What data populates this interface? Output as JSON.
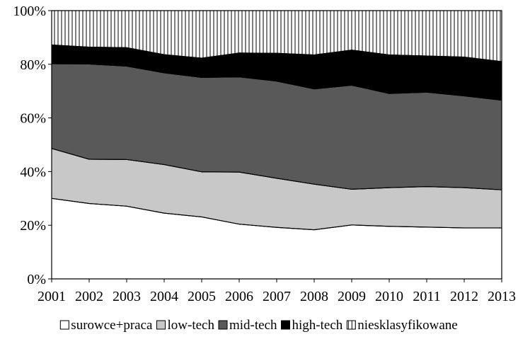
{
  "chart_data": {
    "type": "area",
    "stacked": true,
    "percent": true,
    "x": [
      "2001",
      "2002",
      "2003",
      "2004",
      "2005",
      "2006",
      "2007",
      "2008",
      "2009",
      "2010",
      "2011",
      "2012",
      "2013"
    ],
    "ylim": [
      0,
      100
    ],
    "y_ticks": [
      "0%",
      "20%",
      "40%",
      "60%",
      "80%",
      "100%"
    ],
    "y_tick_values": [
      0,
      20,
      40,
      60,
      80,
      100
    ],
    "grid": false,
    "legend_position": "bottom",
    "series": [
      {
        "name": "surowce+praca",
        "fill": "#ffffff",
        "pattern": "none",
        "values": [
          30.0,
          28.1,
          27.1,
          24.5,
          23.1,
          20.4,
          19.2,
          18.3,
          20.1,
          19.6,
          19.3,
          19.0,
          19.0
        ]
      },
      {
        "name": "low-tech",
        "fill": "#c8c8c8",
        "pattern": "none",
        "values": [
          18.6,
          16.5,
          17.4,
          18.1,
          16.8,
          19.4,
          18.3,
          17.0,
          13.3,
          14.4,
          15.1,
          15.0,
          14.2
        ]
      },
      {
        "name": "mid-tech",
        "fill": "#595959",
        "pattern": "none",
        "values": [
          31.6,
          35.5,
          34.8,
          34.2,
          35.2,
          35.5,
          36.2,
          35.5,
          38.8,
          35.1,
          35.2,
          34.2,
          33.4
        ]
      },
      {
        "name": "high-tech",
        "fill": "#000000",
        "pattern": "none",
        "values": [
          7.0,
          6.3,
          6.9,
          6.8,
          7.2,
          8.9,
          10.4,
          12.7,
          13.1,
          14.4,
          13.5,
          14.5,
          14.4
        ]
      },
      {
        "name": "niesklasyfikowane",
        "fill": "#ffffff",
        "pattern": "vertical-lines",
        "values": [
          12.8,
          13.6,
          13.8,
          16.4,
          17.7,
          15.8,
          15.9,
          16.5,
          14.7,
          16.5,
          16.9,
          17.3,
          19.0
        ]
      }
    ]
  }
}
